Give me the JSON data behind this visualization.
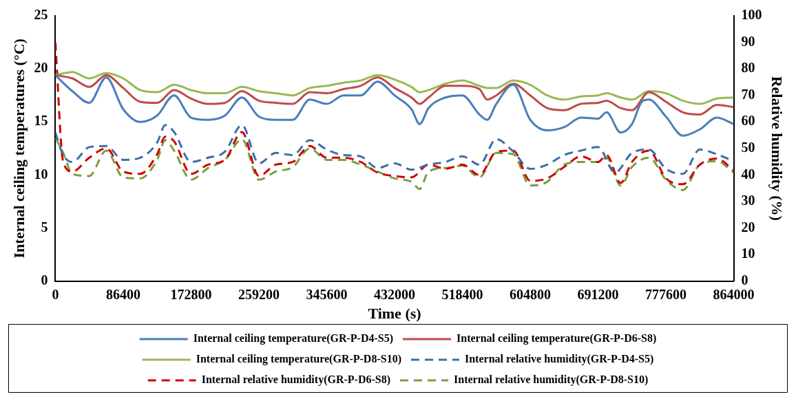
{
  "chart_data": {
    "type": "line",
    "xlabel": "Time (s)",
    "ylabel": "Internal ceiling temperatures (°C)",
    "y2label": "Relative humidity (%)",
    "xlim": [
      0,
      864000
    ],
    "xticks": [
      0,
      86400,
      172800,
      259200,
      345600,
      432000,
      518400,
      604800,
      691200,
      777600,
      864000
    ],
    "ylim": [
      0,
      25
    ],
    "yticks": [
      0,
      5,
      10,
      15,
      20,
      25
    ],
    "y2lim": [
      0,
      100
    ],
    "y2ticks": [
      0,
      10,
      20,
      30,
      40,
      50,
      60,
      70,
      80,
      90,
      100
    ],
    "grid": false,
    "legend": "bottom",
    "marker": "none",
    "series": [
      {
        "name": "Internal ceiling temperature(GR-P-D4-S5)",
        "color": "#4a7ebb",
        "line_style": "solid",
        "x": [
          0,
          21600,
          43200,
          64800,
          86400,
          108000,
          129600,
          151200,
          172800,
          194400,
          216000,
          237600,
          259200,
          280800,
          302400,
          324000,
          345600,
          367200,
          388800,
          410400,
          432000,
          453600,
          464000,
          475200,
          496800,
          518400,
          540000,
          550000,
          561600,
          583200,
          604800,
          626400,
          648000,
          669600,
          691200,
          702000,
          720000,
          734400,
          747000,
          756000,
          777600,
          799200,
          820800,
          842400,
          864000
        ],
        "values": [
          19.4,
          17.9,
          16.8,
          19.2,
          16.2,
          15.0,
          15.6,
          17.5,
          15.4,
          15.2,
          15.6,
          17.3,
          15.5,
          15.2,
          15.2,
          17.1,
          16.7,
          17.5,
          17.5,
          18.8,
          17.5,
          16.2,
          14.8,
          16.3,
          17.3,
          17.5,
          15.7,
          15.2,
          16.7,
          18.5,
          15.2,
          14.2,
          14.5,
          15.4,
          15.3,
          15.9,
          14.0,
          14.8,
          16.9,
          17.1,
          15.5,
          13.7,
          14.3,
          15.4,
          14.8
        ]
      },
      {
        "name": "Internal ceiling temperature(GR-P-D6-S8)",
        "color": "#be4b48",
        "line_style": "solid",
        "x": [
          0,
          21600,
          43200,
          64800,
          86400,
          108000,
          129600,
          151200,
          172800,
          194400,
          216000,
          237600,
          259200,
          280800,
          302400,
          324000,
          345600,
          367200,
          388800,
          410400,
          432000,
          453600,
          464000,
          475200,
          496800,
          518400,
          540000,
          550000,
          561600,
          583200,
          604800,
          626400,
          648000,
          669600,
          691200,
          702000,
          720000,
          734400,
          756000,
          777600,
          799200,
          820800,
          842400,
          864000
        ],
        "values": [
          19.4,
          19.1,
          18.3,
          19.4,
          18.2,
          16.9,
          16.8,
          18.0,
          17.2,
          16.7,
          16.8,
          17.9,
          17.0,
          16.8,
          16.7,
          17.8,
          17.7,
          18.1,
          18.4,
          19.2,
          18.2,
          17.3,
          16.7,
          17.3,
          18.4,
          18.4,
          18.1,
          17.1,
          17.5,
          18.6,
          17.5,
          16.3,
          16.1,
          16.7,
          16.8,
          17.0,
          16.3,
          16.1,
          17.8,
          16.9,
          15.9,
          15.7,
          16.6,
          16.4
        ]
      },
      {
        "name": "Internal ceiling temperature(GR-P-D8-S10)",
        "color": "#98b954",
        "line_style": "solid",
        "x": [
          0,
          21600,
          43200,
          64800,
          86400,
          108000,
          129600,
          151200,
          172800,
          194400,
          216000,
          237600,
          259200,
          280800,
          302400,
          324000,
          345600,
          367200,
          388800,
          410400,
          432000,
          453600,
          464000,
          475200,
          496800,
          518400,
          540000,
          550000,
          561600,
          583200,
          604800,
          626400,
          648000,
          669600,
          691200,
          702000,
          720000,
          734400,
          756000,
          777600,
          799200,
          820800,
          842400,
          864000
        ],
        "values": [
          19.4,
          19.7,
          19.1,
          19.6,
          19.1,
          18.0,
          17.8,
          18.5,
          18.0,
          17.7,
          17.7,
          18.3,
          17.9,
          17.7,
          17.5,
          18.2,
          18.4,
          18.7,
          18.9,
          19.4,
          19.0,
          18.3,
          17.8,
          18.0,
          18.6,
          18.9,
          18.4,
          18.2,
          18.2,
          18.9,
          18.5,
          17.5,
          17.1,
          17.4,
          17.5,
          17.7,
          17.3,
          17.1,
          17.9,
          17.7,
          17.0,
          16.7,
          17.2,
          17.3
        ]
      },
      {
        "name": "Internal relative humidity(GR-P-D4-S5)",
        "color": "#3b6ea8",
        "line_style": "dashed",
        "axis": "y2",
        "x": [
          0,
          10000,
          21600,
          43200,
          64800,
          86400,
          108000,
          129600,
          140000,
          151200,
          172800,
          194400,
          216000,
          237600,
          259200,
          280800,
          302400,
          324000,
          345600,
          367200,
          388800,
          410400,
          432000,
          453600,
          475200,
          496800,
          518400,
          540000,
          561600,
          583200,
          604800,
          626400,
          648000,
          669600,
          691200,
          712800,
          734400,
          756000,
          777600,
          799200,
          820800,
          842400,
          864000
        ],
        "values": [
          56,
          47.5,
          44.9,
          50.5,
          50.9,
          45.7,
          46.5,
          52.2,
          58.8,
          56.2,
          44.9,
          46.5,
          48.8,
          58.8,
          44.4,
          48.3,
          47.5,
          53.1,
          49.6,
          47.5,
          47.0,
          42.6,
          44.4,
          42.0,
          43.9,
          44.9,
          47.0,
          43.9,
          53.5,
          48.8,
          42.3,
          43.9,
          47.5,
          49.2,
          50.5,
          40.9,
          48.3,
          49.6,
          42.3,
          40.4,
          49.6,
          47.8,
          45.2
        ]
      },
      {
        "name": "Internal relative humidity(GR-P-D6-S8)",
        "color": "#d00000",
        "line_style": "dashed",
        "axis": "y2",
        "x": [
          0,
          10000,
          21600,
          43200,
          64800,
          86400,
          108000,
          129600,
          140000,
          151200,
          172800,
          194400,
          216000,
          237600,
          259200,
          280800,
          302400,
          324000,
          345600,
          367200,
          388800,
          410400,
          432000,
          453600,
          475200,
          496800,
          518400,
          540000,
          561600,
          583200,
          604800,
          626400,
          648000,
          669600,
          691200,
          702000,
          720000,
          734400,
          756000,
          777600,
          799200,
          820800,
          842400,
          864000
        ],
        "values": [
          90,
          44.9,
          41.3,
          46.5,
          50.0,
          41.3,
          40.4,
          47.8,
          54.4,
          52.7,
          40.4,
          43.9,
          45.7,
          56.2,
          39.6,
          43.9,
          44.9,
          50.9,
          46.5,
          46.5,
          44.9,
          40.9,
          39.6,
          39.1,
          43.9,
          42.3,
          43.9,
          40.0,
          48.7,
          49.2,
          37.8,
          38.7,
          43.0,
          47.0,
          44.9,
          47.5,
          37.0,
          44.9,
          49.2,
          38.7,
          36.5,
          43.9,
          46.2,
          41.7
        ]
      },
      {
        "name": "Internal relative humidity(GR-P-D8-S10)",
        "color": "#77a040",
        "line_style": "dashed",
        "axis": "y2",
        "x": [
          0,
          10000,
          21600,
          43200,
          64800,
          86400,
          108000,
          129600,
          140000,
          151200,
          172800,
          194400,
          216000,
          237600,
          259200,
          280800,
          302400,
          324000,
          345600,
          367200,
          388800,
          410400,
          432000,
          453600,
          464000,
          475200,
          496800,
          518400,
          540000,
          561600,
          583200,
          604800,
          626400,
          648000,
          669600,
          691200,
          702000,
          720000,
          734400,
          756000,
          777600,
          799200,
          820800,
          842400,
          864000
        ],
        "values": [
          54,
          48.3,
          40.4,
          39.6,
          49.2,
          39.1,
          38.7,
          45.7,
          53.1,
          49.2,
          38.2,
          42.6,
          45.7,
          53.5,
          38.2,
          41.3,
          43.0,
          50.0,
          45.7,
          45.7,
          43.9,
          41.3,
          38.7,
          37.4,
          34.7,
          41.3,
          42.6,
          43.5,
          39.1,
          48.3,
          47.8,
          36.0,
          37.4,
          43.9,
          44.9,
          44.9,
          46.5,
          36.0,
          43.0,
          46.5,
          38.2,
          34.3,
          43.9,
          45.2,
          40.9
        ]
      }
    ]
  }
}
